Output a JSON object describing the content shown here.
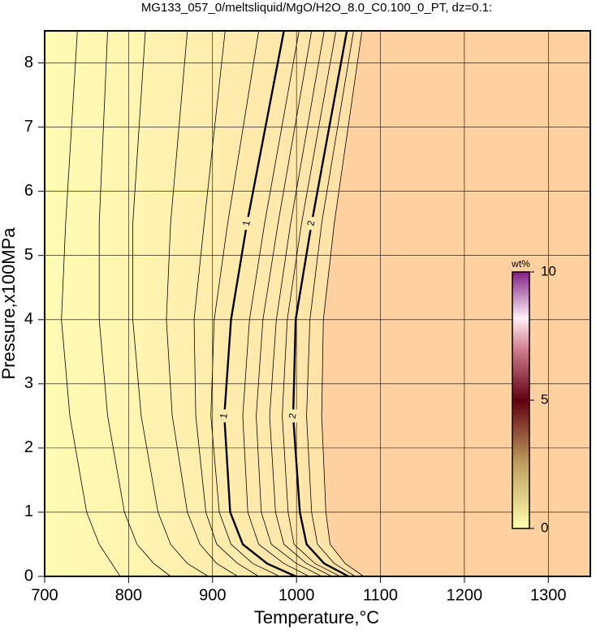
{
  "chart_data": {
    "type": "contour",
    "title": "MG133_057_0/meltsliquid/MgO/H2O_8.0_C0.100_0_PT, dz=0.1:",
    "x_label": "Temperature,°C",
    "y_label": "Pressure,x100MPa",
    "xlim": [
      700,
      1350
    ],
    "ylim": [
      0,
      8.5
    ],
    "xticks": [
      700,
      800,
      900,
      1000,
      1100,
      1200,
      1300
    ],
    "yticks": [
      0,
      1,
      2,
      3,
      4,
      5,
      6,
      7,
      8
    ],
    "grid": true,
    "y": [
      0,
      0.2,
      0.5,
      1,
      2.5,
      4,
      5.5,
      8.5
    ],
    "contours": [
      {
        "values": [
          790,
          780,
          765,
          750,
          730,
          720,
          725,
          739
        ]
      },
      {
        "values": [
          850,
          830,
          810,
          795,
          775,
          765,
          765,
          775
        ]
      },
      {
        "values": [
          895,
          870,
          850,
          835,
          815,
          805,
          805,
          820
        ]
      },
      {
        "values": [
          930,
          905,
          885,
          870,
          852,
          845,
          850,
          870
        ]
      },
      {
        "values": [
          955,
          930,
          905,
          892,
          880,
          878,
          890,
          915
        ]
      },
      {
        "values": [
          980,
          948,
          922,
          908,
          898,
          902,
          918,
          955
        ]
      },
      {
        "label": "1",
        "values": [
          999,
          965,
          936,
          921,
          914,
          922,
          941,
          985
        ]
      },
      {
        "values": [
          1015,
          985,
          955,
          942,
          936,
          944,
          962,
          1003
        ]
      },
      {
        "values": [
          1030,
          1000,
          970,
          958,
          952,
          960,
          978,
          1018
        ]
      },
      {
        "values": [
          1042,
          1012,
          985,
          975,
          968,
          976,
          993,
          1033
        ]
      },
      {
        "values": [
          1052,
          1022,
          997,
          990,
          983,
          989,
          1006,
          1047
        ]
      },
      {
        "label": "2",
        "values": [
          1062,
          1033,
          1012,
          1004,
          996,
          999,
          1018,
          1060
        ]
      },
      {
        "values": [
          1070,
          1045,
          1025,
          1018,
          1012,
          1016,
          1030,
          1068
        ]
      },
      {
        "values": [
          1080,
          1058,
          1040,
          1035,
          1030,
          1032,
          1045,
          1078
        ]
      }
    ],
    "colorbar": {
      "label": "wt%",
      "lim": [
        0,
        10
      ],
      "ticks": [
        0,
        5,
        10
      ]
    }
  }
}
